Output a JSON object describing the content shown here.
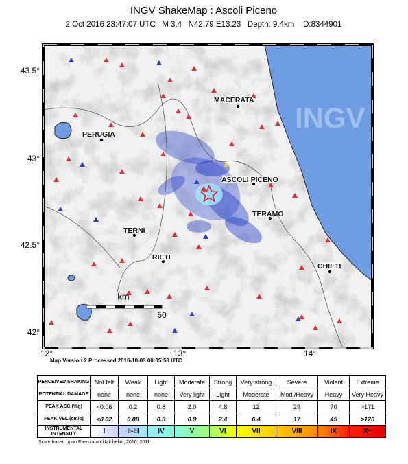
{
  "header": {
    "title": "INGV ShakeMap : Ascoli Piceno",
    "subtitle": "2 Oct 2016 23:47:07 UTC   M 3.4   N42.79 E13.23   Depth: 9.4km   ID:8344901"
  },
  "map": {
    "lat_labels": [
      "43.5°",
      "43°",
      "42.5°",
      "42°"
    ],
    "lon_labels": [
      "12°",
      "13°",
      "14°"
    ],
    "cities": [
      "MACERATA",
      "PERUGIA",
      "ASCOLI PICENO",
      "TERNI",
      "TERAMO",
      "RIETI",
      "CHIETI"
    ],
    "scale_unit": "km",
    "scale_value": "50",
    "watermark": "INGV"
  },
  "version": "Map Version 2 Processed 2016-10-03 00:05:58 UTC",
  "table": {
    "rows": [
      [
        "PERCEIVED SHAKING",
        "Not felt",
        "Weak",
        "Light",
        "Moderate",
        "Strong",
        "Very strong",
        "Severe",
        "Violent",
        "Extreme"
      ],
      [
        "POTENTIAL DAMAGE",
        "none",
        "none",
        "none",
        "Very light",
        "Light",
        "Moderate",
        "Mod./Heavy",
        "Heavy",
        "Very Heavy"
      ],
      [
        "PEAK ACC.(%g)",
        "<0.06",
        "0.2",
        "0.8",
        "2.0",
        "4.8",
        "12",
        "29",
        "70",
        ">171"
      ],
      [
        "PEAK VEL.(cm/s)",
        "<0.02",
        "0.08",
        "0.3",
        "0.9",
        "2.4",
        "6.4",
        "17",
        "45",
        ">120"
      ],
      [
        "INSTRUMENTAL INTENSITY",
        "I",
        "II-III",
        "IV",
        "V",
        "VI",
        "VII",
        "VIII",
        "IX",
        "X+"
      ]
    ]
  },
  "footer": "Scale based upon Faenza and Michelini, 2010, 2011"
}
